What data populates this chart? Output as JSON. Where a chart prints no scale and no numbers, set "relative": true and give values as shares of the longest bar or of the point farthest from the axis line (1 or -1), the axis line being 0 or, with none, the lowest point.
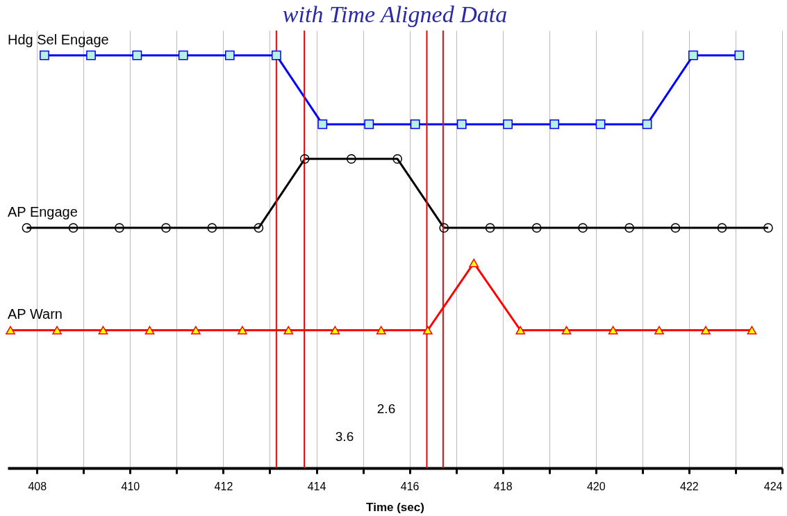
{
  "chart_data": {
    "type": "line",
    "title": "with Time Aligned Data",
    "xlabel": "Time (sec)",
    "relative": true,
    "xlim": [
      407.37,
      424
    ],
    "xticks": [
      408,
      {
        "value": 409,
        "label": null
      },
      410,
      {
        "value": 411,
        "label": null
      },
      412,
      {
        "value": 413,
        "label": null
      },
      414,
      {
        "value": 415,
        "label": null
      },
      416,
      {
        "value": 417,
        "label": null
      },
      418,
      {
        "value": 419,
        "label": null
      },
      420,
      {
        "value": 421,
        "label": null
      },
      422,
      {
        "value": 423,
        "label": null
      },
      424
    ],
    "grid": "x",
    "legend": false,
    "series": [
      {
        "name": "Hdg Sel Engage",
        "color": "#0000ff",
        "marker": "square",
        "x": [
          408.16,
          409.16,
          410.15,
          411.14,
          412.14,
          413.14,
          414.13,
          415.13,
          416.12,
          417.12,
          418.11,
          419.11,
          420.1,
          421.1,
          422.09,
          423.08
        ],
        "values": [
          1,
          1,
          1,
          1,
          1,
          1,
          0.833,
          0.833,
          0.833,
          0.833,
          0.833,
          0.833,
          0.833,
          0.833,
          1,
          1
        ]
      },
      {
        "name": "AP Engage",
        "color": "#000000",
        "marker": "circle",
        "x": [
          407.78,
          408.78,
          409.77,
          410.77,
          411.76,
          412.76,
          413.75,
          414.75,
          415.74,
          416.74,
          417.73,
          418.73,
          419.72,
          420.72,
          421.71,
          422.71,
          423.7
        ],
        "values": [
          0.582,
          0.582,
          0.582,
          0.582,
          0.582,
          0.582,
          0.749,
          0.749,
          0.749,
          0.582,
          0.582,
          0.582,
          0.582,
          0.582,
          0.582,
          0.582,
          0.582
        ]
      },
      {
        "name": "AP Warn",
        "color": "#ff0000",
        "marker": "triangle",
        "x": [
          407.43,
          408.43,
          409.42,
          410.42,
          411.41,
          412.41,
          413.4,
          414.4,
          415.39,
          416.39,
          417.38,
          418.38,
          419.37,
          420.37,
          421.36,
          422.36,
          423.35
        ],
        "values": [
          0.334,
          0.334,
          0.334,
          0.334,
          0.334,
          0.334,
          0.334,
          0.334,
          0.334,
          0.334,
          0.497,
          0.334,
          0.334,
          0.334,
          0.334,
          0.334,
          0.334
        ]
      }
    ],
    "ref_lines": [
      {
        "axis": "x",
        "value": 413.14,
        "color": "#ff0000"
      },
      {
        "axis": "x",
        "value": 413.74,
        "color": "#ff0000"
      },
      {
        "axis": "x",
        "value": 416.37,
        "color": "#ff0000"
      },
      {
        "axis": "x",
        "value": 416.72,
        "color": "#ff0000"
      }
    ],
    "annotations": [
      "2.6",
      "3.6"
    ]
  }
}
